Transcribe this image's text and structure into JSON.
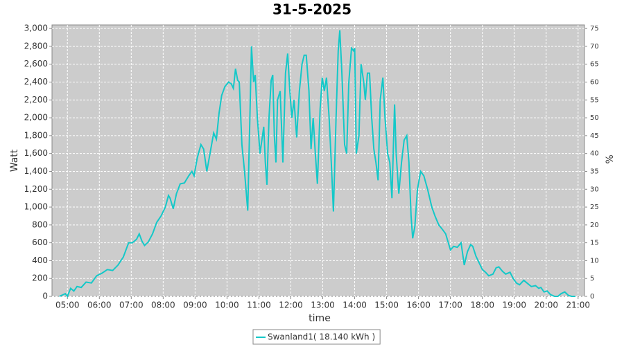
{
  "chart_data": {
    "type": "line",
    "title": "31-5-2025",
    "x_label": "time",
    "y_label": "Watt",
    "y2_label": "%",
    "x": [
      285,
      296,
      300,
      306,
      312,
      318,
      326,
      335,
      345,
      355,
      365,
      375,
      385,
      395,
      405,
      415,
      422,
      430,
      435,
      440,
      445,
      452,
      460,
      468,
      476,
      484,
      490,
      493,
      499,
      505,
      512,
      520,
      528,
      534,
      538,
      544,
      551,
      556,
      562,
      568,
      575,
      580,
      585,
      590,
      596,
      603,
      608,
      612,
      616,
      620,
      623,
      628,
      633,
      639,
      643,
      646,
      650,
      653,
      657,
      662,
      669,
      672,
      675,
      679,
      683,
      686,
      689,
      692,
      695,
      700,
      705,
      710,
      714,
      718,
      722,
      726,
      731,
      736,
      741,
      745,
      749,
      754,
      758,
      762,
      766,
      770,
      775,
      779,
      783,
      787,
      792,
      796,
      800,
      805,
      809,
      812,
      816,
      821,
      825,
      829,
      834,
      838,
      840,
      843,
      848,
      852,
      857,
      860,
      864,
      868,
      872,
      876,
      880,
      884,
      888,
      893,
      897,
      902,
      906,
      910,
      915,
      918,
      923,
      928,
      933,
      938,
      942,
      946,
      949,
      953,
      958,
      964,
      970,
      977,
      985,
      991,
      998,
      1005,
      1011,
      1016,
      1020,
      1026,
      1033,
      1040,
      1046,
      1052,
      1058,
      1062,
      1068,
      1072,
      1080,
      1086,
      1092,
      1100,
      1106,
      1111,
      1118,
      1124,
      1132,
      1138,
      1144,
      1150,
      1158,
      1164,
      1172,
      1180,
      1186,
      1190,
      1196,
      1202,
      1208,
      1216,
      1222,
      1228,
      1235,
      1242,
      1248,
      1255
    ],
    "series": [
      {
        "name": "Swanland1( 18.140 kWh )",
        "color": "#14c8c8",
        "values": [
          0,
          30,
          0,
          90,
          60,
          110,
          100,
          160,
          150,
          230,
          260,
          300,
          290,
          350,
          440,
          600,
          600,
          640,
          700,
          620,
          570,
          610,
          700,
          830,
          900,
          1000,
          1130,
          1100,
          980,
          1150,
          1260,
          1270,
          1350,
          1400,
          1350,
          1550,
          1700,
          1650,
          1400,
          1600,
          1830,
          1760,
          2050,
          2250,
          2350,
          2400,
          2380,
          2330,
          2550,
          2420,
          2400,
          1700,
          1400,
          960,
          2000,
          2800,
          2400,
          2480,
          2000,
          1600,
          1900,
          1500,
          1250,
          2000,
          2420,
          2480,
          1800,
          1500,
          2200,
          2300,
          1500,
          2500,
          2720,
          2300,
          2000,
          2200,
          1780,
          2300,
          2600,
          2700,
          2700,
          2300,
          1650,
          2000,
          1600,
          1260,
          2100,
          2450,
          2300,
          2450,
          2000,
          1500,
          950,
          2000,
          2750,
          2980,
          2500,
          1700,
          1600,
          2400,
          2780,
          2750,
          2780,
          1600,
          1800,
          2600,
          2400,
          2200,
          2500,
          2500,
          2000,
          1650,
          1500,
          1300,
          2200,
          2450,
          2000,
          1600,
          1500,
          1100,
          2150,
          1600,
          1150,
          1500,
          1750,
          1800,
          1500,
          900,
          650,
          780,
          1200,
          1400,
          1350,
          1200,
          1000,
          900,
          800,
          750,
          700,
          600,
          520,
          560,
          550,
          600,
          350,
          500,
          580,
          560,
          450,
          400,
          300,
          270,
          230,
          250,
          320,
          330,
          280,
          250,
          270,
          200,
          150,
          130,
          180,
          150,
          110,
          120,
          90,
          100,
          50,
          60,
          20,
          0,
          0,
          30,
          50,
          10,
          0,
          0
        ]
      }
    ],
    "xlim": [
      271,
      1272
    ],
    "xticks": [
      {
        "value": 300,
        "label": "05:00"
      },
      {
        "value": 360,
        "label": "06:00"
      },
      {
        "value": 420,
        "label": "07:00"
      },
      {
        "value": 480,
        "label": "08:00"
      },
      {
        "value": 540,
        "label": "09:00"
      },
      {
        "value": 600,
        "label": "10:00"
      },
      {
        "value": 660,
        "label": "11:00"
      },
      {
        "value": 720,
        "label": "12:00"
      },
      {
        "value": 780,
        "label": "13:00"
      },
      {
        "value": 840,
        "label": "14:00"
      },
      {
        "value": 900,
        "label": "15:00"
      },
      {
        "value": 960,
        "label": "16:00"
      },
      {
        "value": 1020,
        "label": "17:00"
      },
      {
        "value": 1080,
        "label": "18:00"
      },
      {
        "value": 1140,
        "label": "19:00"
      },
      {
        "value": 1200,
        "label": "20:00"
      },
      {
        "value": 1260,
        "label": "21:00"
      }
    ],
    "ylim": [
      0,
      3040
    ],
    "yticks": [
      0,
      200,
      400,
      600,
      800,
      {
        "value": 1000,
        "label": "1,000"
      },
      {
        "value": 1200,
        "label": "1,200"
      },
      {
        "value": 1400,
        "label": "1,400"
      },
      {
        "value": 1600,
        "label": "1,600"
      },
      {
        "value": 1800,
        "label": "1,800"
      },
      {
        "value": 2000,
        "label": "2,000"
      },
      {
        "value": 2200,
        "label": "2,200"
      },
      {
        "value": 2400,
        "label": "2,400"
      },
      {
        "value": 2600,
        "label": "2,600"
      },
      {
        "value": 2800,
        "label": "2,800"
      },
      {
        "value": 3000,
        "label": "3,000"
      }
    ],
    "y2lim": [
      0,
      76
    ],
    "y2ticks": [
      0,
      5,
      10,
      15,
      20,
      25,
      30,
      35,
      40,
      45,
      50,
      55,
      60,
      65,
      70,
      75
    ],
    "grid": true,
    "legend": "bottom"
  }
}
